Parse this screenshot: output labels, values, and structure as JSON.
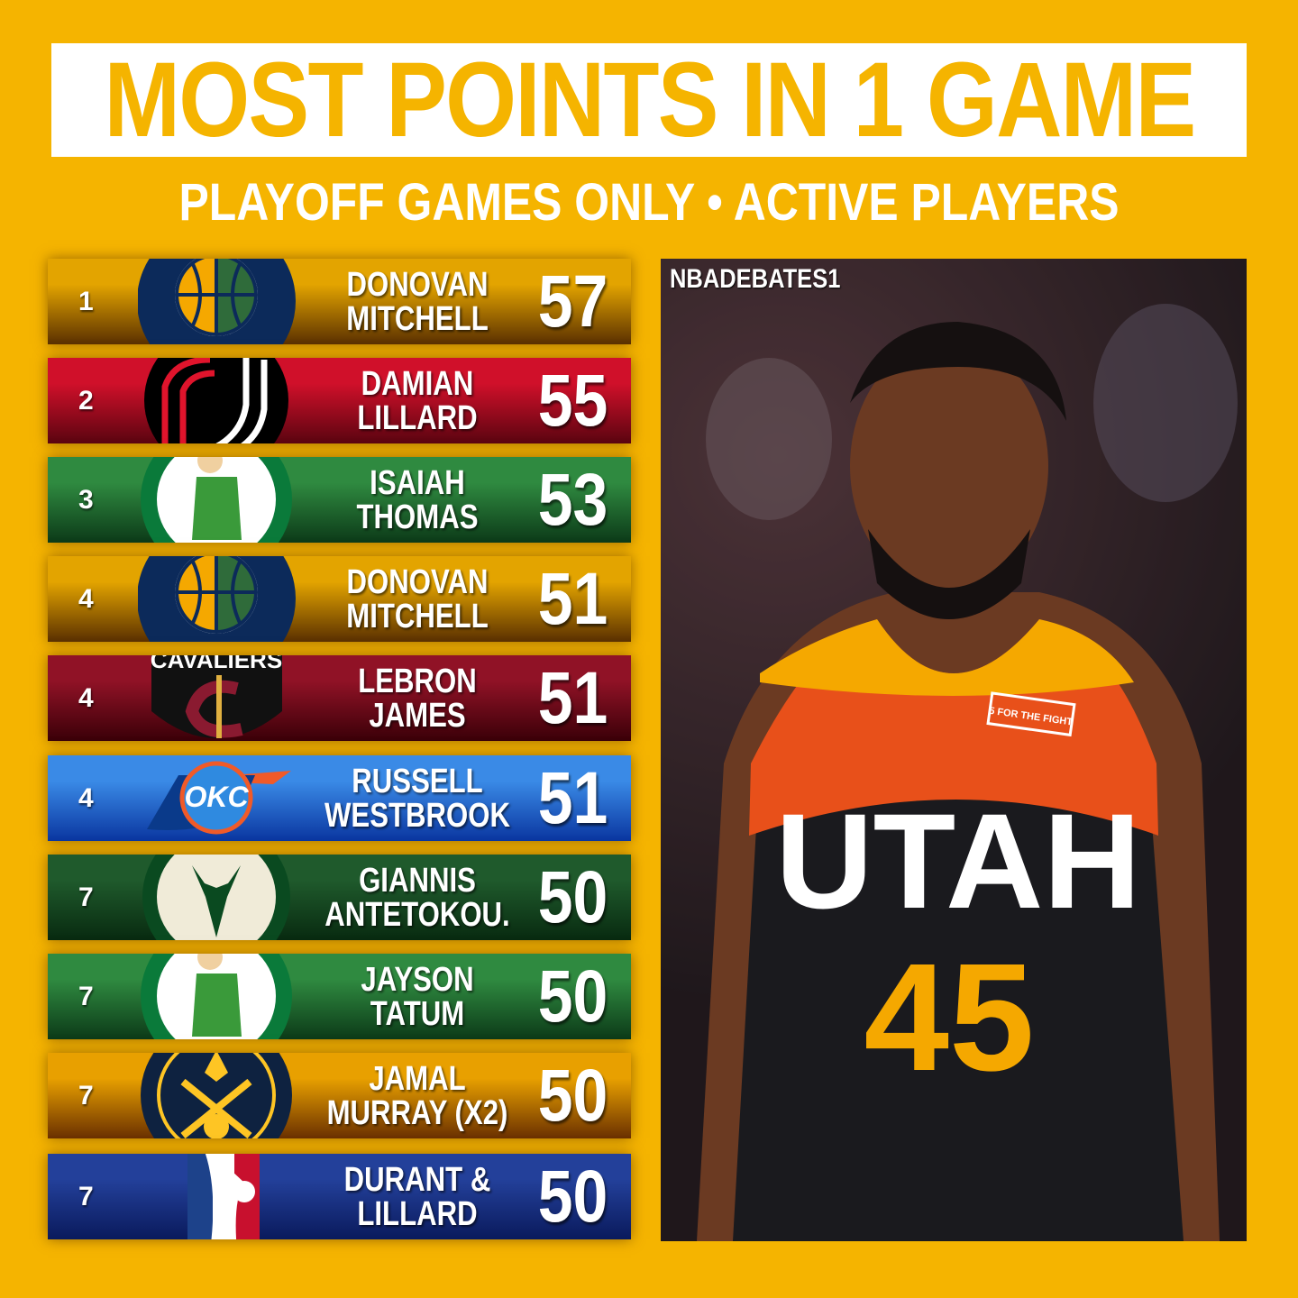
{
  "title": "MOST POINTS IN 1 GAME",
  "subtitle": "PLAYOFF GAMES ONLY • ACTIVE PLAYERS",
  "photo": {
    "watermark": "NBADEBATES1",
    "jersey_text": "UTAH",
    "jersey_number": "45",
    "patch_text": "5 FOR THE FIGHT"
  },
  "rows": [
    {
      "rank": "1",
      "first": "DONOVAN",
      "last": "MITCHELL",
      "points": "57",
      "team": "jazz",
      "c1": "#e3a400",
      "c2": "#5a3000"
    },
    {
      "rank": "2",
      "first": "DAMIAN",
      "last": "LILLARD",
      "points": "55",
      "team": "blazers",
      "c1": "#d0102a",
      "c2": "#5a0410"
    },
    {
      "rank": "3",
      "first": "ISAIAH",
      "last": "THOMAS",
      "points": "53",
      "team": "celtics",
      "c1": "#2f8a40",
      "c2": "#0c3a18"
    },
    {
      "rank": "4",
      "first": "DONOVAN",
      "last": "MITCHELL",
      "points": "51",
      "team": "jazz",
      "c1": "#e3a400",
      "c2": "#5a3000"
    },
    {
      "rank": "4",
      "first": "LEBRON",
      "last": "JAMES",
      "points": "51",
      "team": "cavaliers",
      "c1": "#901226",
      "c2": "#3a0008"
    },
    {
      "rank": "4",
      "first": "RUSSELL",
      "last": "WESTBROOK",
      "points": "51",
      "team": "thunder",
      "c1": "#3a8ae6",
      "c2": "#0a36a0"
    },
    {
      "rank": "7",
      "first": "GIANNIS",
      "last": "ANTETOKOU.",
      "points": "50",
      "team": "bucks",
      "c1": "#1f5a2c",
      "c2": "#082a10"
    },
    {
      "rank": "7",
      "first": "JAYSON",
      "last": "TATUM",
      "points": "50",
      "team": "celtics",
      "c1": "#2f8a40",
      "c2": "#0c3a18"
    },
    {
      "rank": "7",
      "first": "JAMAL",
      "last": "MURRAY (X2)",
      "points": "50",
      "team": "nuggets",
      "c1": "#e8a000",
      "c2": "#6a3000"
    },
    {
      "rank": "7",
      "first": "DURANT &",
      "last": "LILLARD",
      "points": "50",
      "team": "nba",
      "c1": "#23409a",
      "c2": "#0a1a5c"
    }
  ]
}
